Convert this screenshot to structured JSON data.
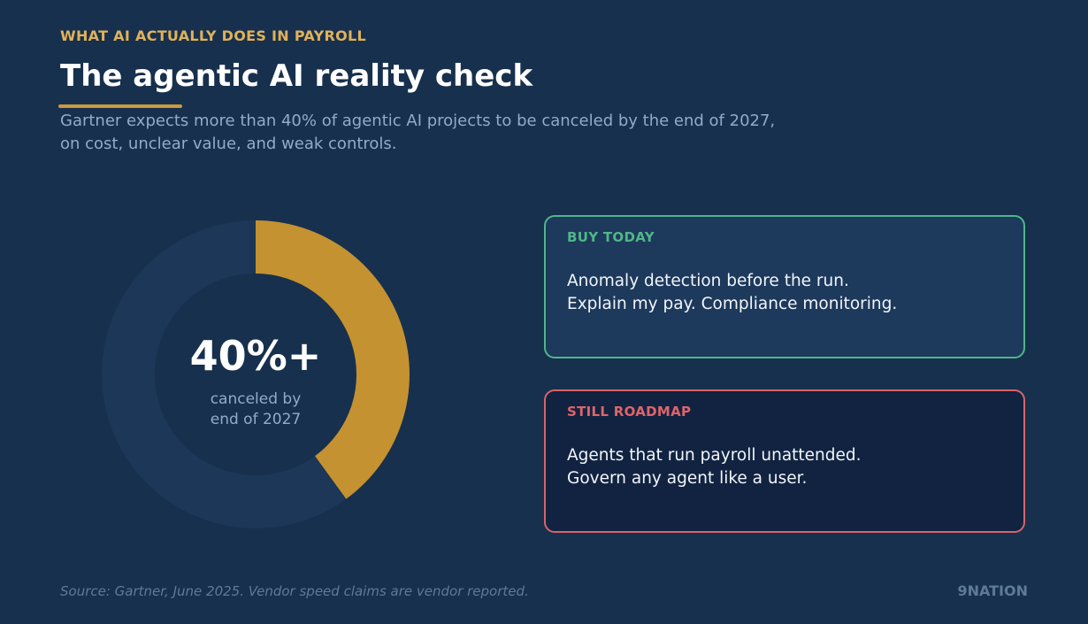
{
  "header": {
    "eyebrow": "WHAT AI ACTUALLY DOES IN PAYROLL",
    "title": "The agentic AI reality check",
    "subtitle_lines": [
      "Gartner expects more than 40% of agentic AI projects to be canceled by the end of 2027,",
      "on cost, unclear value, and weak controls."
    ]
  },
  "chart_data": {
    "type": "pie",
    "variant": "donut",
    "slices": [
      {
        "label": "canceled",
        "value": 40,
        "color": "#c49230"
      },
      {
        "label": "",
        "value": 60,
        "color": "#1c3757"
      }
    ],
    "center_value": "40%+",
    "center_caption_lines": [
      "canceled by",
      "end of 2027"
    ]
  },
  "cards": [
    {
      "label": "BUY TODAY",
      "lines": [
        "Anomaly detection before the run.",
        "Explain my pay. Compliance monitoring."
      ],
      "accent": "#4fb787"
    },
    {
      "label": "STILL ROADMAP",
      "lines": [
        "Agents that run payroll unattended.",
        "Govern any agent like a user."
      ],
      "accent": "#d7646a"
    }
  ],
  "footer": {
    "source": "Source: Gartner, June 2025. Vendor speed claims are vendor reported.",
    "brand": "9NATION"
  }
}
